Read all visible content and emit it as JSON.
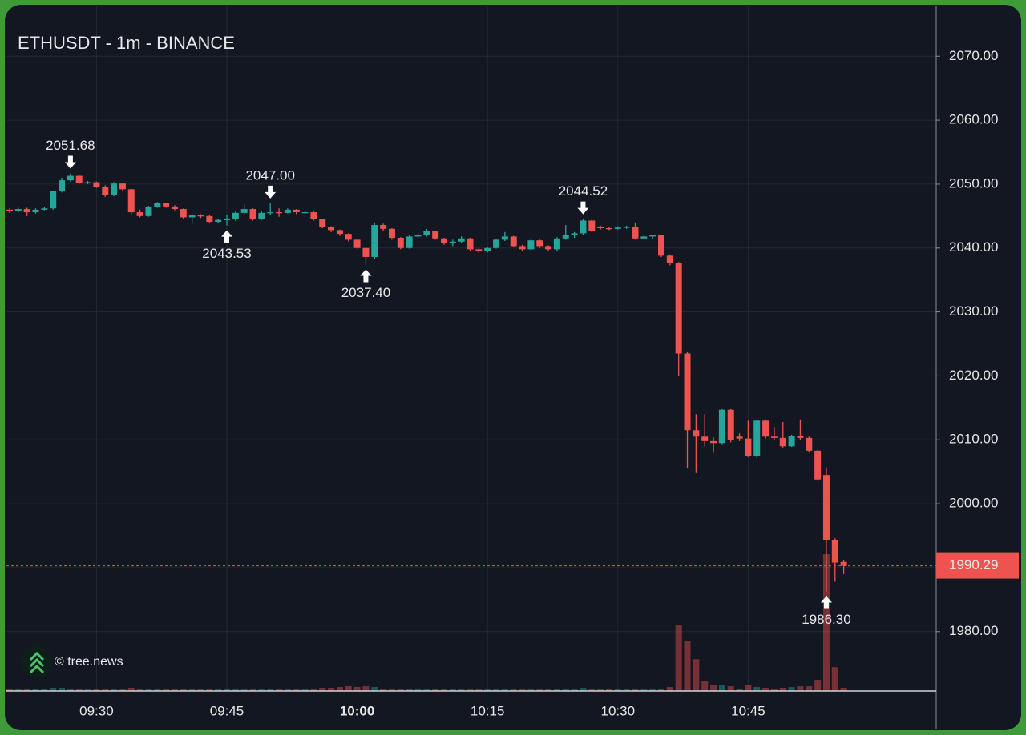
{
  "chart_data": {
    "type": "candlestick",
    "title": "ETHUSDT - 1m - BINANCE",
    "watermark": "© tree.news",
    "x": [
      "09:20",
      "09:21",
      "09:22",
      "09:23",
      "09:24",
      "09:25",
      "09:26",
      "09:27",
      "09:28",
      "09:29",
      "09:30",
      "09:31",
      "09:32",
      "09:33",
      "09:34",
      "09:35",
      "09:36",
      "09:37",
      "09:38",
      "09:39",
      "09:40",
      "09:41",
      "09:42",
      "09:43",
      "09:44",
      "09:45",
      "09:46",
      "09:47",
      "09:48",
      "09:49",
      "09:50",
      "09:51",
      "09:52",
      "09:53",
      "09:54",
      "09:55",
      "09:56",
      "09:57",
      "09:58",
      "09:59",
      "10:00",
      "10:01",
      "10:02",
      "10:03",
      "10:04",
      "10:05",
      "10:06",
      "10:07",
      "10:08",
      "10:09",
      "10:10",
      "10:11",
      "10:12",
      "10:13",
      "10:14",
      "10:15",
      "10:16",
      "10:17",
      "10:18",
      "10:19",
      "10:20",
      "10:21",
      "10:22",
      "10:23",
      "10:24",
      "10:25",
      "10:26",
      "10:27",
      "10:28",
      "10:29",
      "10:30",
      "10:31",
      "10:32",
      "10:33",
      "10:34",
      "10:35",
      "10:36",
      "10:37",
      "10:38",
      "10:39",
      "10:40",
      "10:41",
      "10:42",
      "10:43",
      "10:44",
      "10:45",
      "10:46",
      "10:47",
      "10:48",
      "10:49",
      "10:50",
      "10:51",
      "10:52",
      "10:53",
      "10:54",
      "10:55",
      "10:56"
    ],
    "open": [
      2046.0,
      2045.8,
      2046.1,
      2045.6,
      2046.0,
      2046.2,
      2048.9,
      2050.6,
      2051.3,
      2050.2,
      2050.3,
      2049.6,
      2048.3,
      2050.1,
      2049.2,
      2045.6,
      2045.0,
      2046.4,
      2047.0,
      2046.5,
      2046.1,
      2044.8,
      2045.1,
      2045.0,
      2044.1,
      2044.4,
      2044.5,
      2045.5,
      2046.1,
      2044.5,
      2045.5,
      2045.6,
      2045.5,
      2046.0,
      2045.6,
      2045.6,
      2044.5,
      2043.3,
      2042.8,
      2042.2,
      2041.3,
      2040.0,
      2038.6,
      2043.6,
      2043.0,
      2041.6,
      2040.0,
      2041.8,
      2042.0,
      2042.6,
      2041.5,
      2040.8,
      2041.0,
      2041.5,
      2039.8,
      2039.5,
      2040.0,
      2041.3,
      2041.8,
      2040.3,
      2039.8,
      2041.2,
      2040.3,
      2039.8,
      2041.5,
      2042.0,
      2042.3,
      2044.3,
      2043.3,
      2043.1,
      2043.0,
      2043.2,
      2043.3,
      2041.5,
      2041.8,
      2042.0,
      2038.8,
      2037.6,
      2023.5,
      2011.5,
      2010.5,
      2009.8,
      2009.5,
      2014.7,
      2010.5,
      2010.2,
      2007.5,
      2013.0,
      2010.5,
      2010.3,
      2009.0,
      2010.6,
      2010.3,
      2008.3,
      2004.5,
      1994.3,
      1990.9
    ],
    "high": [
      2046.2,
      2046.3,
      2046.3,
      2046.2,
      2046.4,
      2049.0,
      2051.0,
      2051.68,
      2051.5,
      2050.5,
      2050.4,
      2049.8,
      2050.3,
      2050.2,
      2049.3,
      2046.0,
      2046.6,
      2047.2,
      2047.1,
      2046.7,
      2046.2,
      2045.3,
      2045.3,
      2045.1,
      2044.6,
      2045.2,
      2045.7,
      2046.8,
      2046.2,
      2045.7,
      2047.0,
      2046.2,
      2046.2,
      2046.1,
      2045.8,
      2045.7,
      2044.6,
      2043.4,
      2042.9,
      2042.3,
      2041.4,
      2040.2,
      2044.0,
      2043.8,
      2043.1,
      2041.7,
      2042.0,
      2042.3,
      2043.0,
      2042.7,
      2041.6,
      2041.3,
      2041.8,
      2041.6,
      2040.0,
      2040.2,
      2041.5,
      2042.5,
      2041.9,
      2040.5,
      2041.5,
      2041.3,
      2040.4,
      2041.7,
      2043.6,
      2042.5,
      2044.52,
      2044.4,
      2043.5,
      2043.3,
      2043.4,
      2043.5,
      2044.0,
      2042.0,
      2042.1,
      2042.1,
      2039.0,
      2037.8,
      2023.7,
      2014.0,
      2014.0,
      2010.4,
      2014.8,
      2014.8,
      2011.0,
      2013.0,
      2013.2,
      2013.2,
      2012.0,
      2012.8,
      2010.8,
      2013.2,
      2010.5,
      2008.4,
      2005.7,
      1994.6,
      1991.2
    ],
    "low": [
      2045.5,
      2045.6,
      2045.0,
      2045.4,
      2045.9,
      2046.0,
      2048.7,
      2050.4,
      2050.0,
      2050.0,
      2049.4,
      2048.0,
      2048.1,
      2049.0,
      2045.3,
      2044.8,
      2044.9,
      2046.3,
      2046.3,
      2045.9,
      2044.6,
      2043.8,
      2044.7,
      2043.9,
      2043.9,
      2043.53,
      2044.3,
      2045.3,
      2044.3,
      2044.4,
      2045.2,
      2044.9,
      2045.4,
      2045.3,
      2045.4,
      2044.3,
      2043.1,
      2042.5,
      2041.9,
      2041.0,
      2039.8,
      2037.4,
      2038.3,
      2042.7,
      2041.3,
      2039.8,
      2039.9,
      2041.6,
      2041.8,
      2041.3,
      2040.5,
      2040.3,
      2040.8,
      2039.5,
      2039.2,
      2039.3,
      2039.9,
      2041.1,
      2040.1,
      2039.5,
      2039.6,
      2040.0,
      2039.5,
      2039.6,
      2041.3,
      2041.6,
      2042.1,
      2042.5,
      2042.9,
      2042.8,
      2042.9,
      2043.0,
      2041.3,
      2041.3,
      2041.5,
      2038.6,
      2037.3,
      2020.0,
      2005.5,
      2004.8,
      2009.0,
      2008.0,
      2009.2,
      2009.6,
      2009.8,
      2007.3,
      2007.2,
      2010.2,
      2010.0,
      2008.8,
      2008.9,
      2010.0,
      2008.0,
      2003.6,
      1986.3,
      1987.8,
      1989.0
    ],
    "close": [
      2045.8,
      2046.1,
      2045.6,
      2046.0,
      2046.2,
      2048.9,
      2050.6,
      2051.3,
      2050.2,
      2050.3,
      2049.6,
      2048.3,
      2050.1,
      2049.2,
      2045.6,
      2045.0,
      2046.4,
      2047.0,
      2046.5,
      2046.1,
      2044.8,
      2045.1,
      2045.0,
      2044.1,
      2044.4,
      2044.5,
      2045.5,
      2046.1,
      2044.5,
      2045.5,
      2045.6,
      2045.5,
      2046.0,
      2045.6,
      2045.6,
      2044.5,
      2043.3,
      2042.8,
      2042.2,
      2041.3,
      2040.0,
      2038.6,
      2043.6,
      2043.0,
      2041.6,
      2040.0,
      2041.8,
      2042.0,
      2042.6,
      2041.5,
      2040.8,
      2041.0,
      2041.5,
      2039.8,
      2039.5,
      2040.0,
      2041.3,
      2041.8,
      2040.3,
      2039.8,
      2041.2,
      2040.3,
      2039.8,
      2041.5,
      2042.0,
      2042.3,
      2044.3,
      2042.7,
      2043.1,
      2043.0,
      2043.2,
      2043.3,
      2041.5,
      2041.8,
      2042.0,
      2038.8,
      2037.6,
      2023.5,
      2011.5,
      2010.5,
      2009.8,
      2009.5,
      2014.7,
      2010.0,
      2010.2,
      2007.5,
      2013.0,
      2010.5,
      2010.3,
      2009.0,
      2010.6,
      2010.3,
      2008.3,
      2003.8,
      1994.3,
      1990.8,
      1990.29
    ],
    "volume": [
      3,
      2,
      3,
      2,
      2,
      4,
      4,
      3,
      3,
      2,
      2,
      3,
      3,
      2,
      4,
      3,
      3,
      2,
      2,
      2,
      3,
      2,
      2,
      3,
      2,
      3,
      2,
      3,
      3,
      2,
      3,
      2,
      2,
      2,
      2,
      3,
      4,
      4,
      5,
      6,
      5,
      6,
      5,
      3,
      3,
      3,
      3,
      2,
      2,
      3,
      2,
      2,
      2,
      3,
      2,
      2,
      3,
      2,
      3,
      2,
      2,
      2,
      2,
      3,
      3,
      2,
      4,
      3,
      2,
      2,
      2,
      2,
      3,
      2,
      2,
      3,
      5,
      83,
      63,
      40,
      12,
      7,
      7,
      6,
      3,
      8,
      5,
      4,
      3,
      4,
      5,
      6,
      6,
      14,
      172,
      30,
      4
    ],
    "colors": {
      "up": "#26a69a",
      "down": "#ef5350"
    },
    "ylim": [
      1970.7,
      2077.8
    ],
    "yticks": [
      {
        "value": 1980,
        "label": "1980.00"
      },
      {
        "value": 1990,
        "label": "1990.00"
      },
      {
        "value": 2000,
        "label": "2000.00"
      },
      {
        "value": 2010,
        "label": "2010.00"
      },
      {
        "value": 2020,
        "label": "2020.00"
      },
      {
        "value": 2030,
        "label": "2030.00"
      },
      {
        "value": 2040,
        "label": "2040.00"
      },
      {
        "value": 2050,
        "label": "2050.00"
      },
      {
        "value": 2060,
        "label": "2060.00"
      },
      {
        "value": 2070,
        "label": "2070.00"
      }
    ],
    "xticks": [
      "09:30",
      "09:45",
      "10:00",
      "10:15",
      "10:30",
      "10:45"
    ],
    "grid": true,
    "annotations": [
      {
        "x": "09:27",
        "value": 2051.68,
        "label": "2051.68",
        "position": "above"
      },
      {
        "x": "09:45",
        "value": 2043.53,
        "label": "2043.53",
        "position": "below"
      },
      {
        "x": "09:50",
        "value": 2047.0,
        "label": "2047.00",
        "position": "above"
      },
      {
        "x": "10:01",
        "value": 2037.4,
        "label": "2037.40",
        "position": "below"
      },
      {
        "x": "10:26",
        "value": 2044.52,
        "label": "2044.52",
        "position": "above"
      },
      {
        "x": "10:54",
        "value": 1986.3,
        "label": "1986.30",
        "position": "below"
      }
    ],
    "last_price": {
      "value": 1990.29,
      "label": "1990.29"
    }
  }
}
